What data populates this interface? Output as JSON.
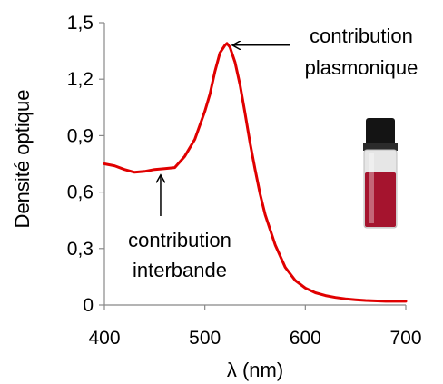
{
  "chart_data": {
    "type": "line",
    "xlabel": "λ (nm)",
    "ylabel": "Densité optique",
    "xlim": [
      400,
      700
    ],
    "ylim": [
      0,
      1.5
    ],
    "x_ticks": [
      "400",
      "500",
      "600",
      "700"
    ],
    "y_ticks": [
      "0",
      "0,3",
      "0,6",
      "0,9",
      "1,2",
      "1,5"
    ],
    "grid": false,
    "series": [
      {
        "color": "#e00000",
        "x": [
          400,
          410,
          420,
          430,
          440,
          450,
          460,
          470,
          480,
          490,
          500,
          505,
          510,
          515,
          520,
          522,
          525,
          530,
          535,
          540,
          545,
          550,
          555,
          560,
          570,
          580,
          590,
          600,
          610,
          620,
          630,
          640,
          650,
          660,
          680,
          700
        ],
        "y": [
          0.75,
          0.74,
          0.72,
          0.705,
          0.71,
          0.72,
          0.725,
          0.73,
          0.79,
          0.88,
          1.03,
          1.12,
          1.24,
          1.34,
          1.38,
          1.39,
          1.37,
          1.29,
          1.17,
          1.02,
          0.86,
          0.72,
          0.59,
          0.48,
          0.32,
          0.2,
          0.13,
          0.09,
          0.065,
          0.05,
          0.04,
          0.033,
          0.028,
          0.024,
          0.02,
          0.02
        ]
      }
    ],
    "annotations": [
      {
        "lines": [
          "contribution",
          "plasmonique"
        ],
        "target_x": 522,
        "target_y": 1.39
      },
      {
        "lines": [
          "contribution",
          "interbande"
        ],
        "target_x": 456,
        "target_y": 0.72
      }
    ]
  },
  "inset": {
    "type": "vial-photo",
    "liquid_color": "#a5142e",
    "cap_color": "#141414"
  }
}
